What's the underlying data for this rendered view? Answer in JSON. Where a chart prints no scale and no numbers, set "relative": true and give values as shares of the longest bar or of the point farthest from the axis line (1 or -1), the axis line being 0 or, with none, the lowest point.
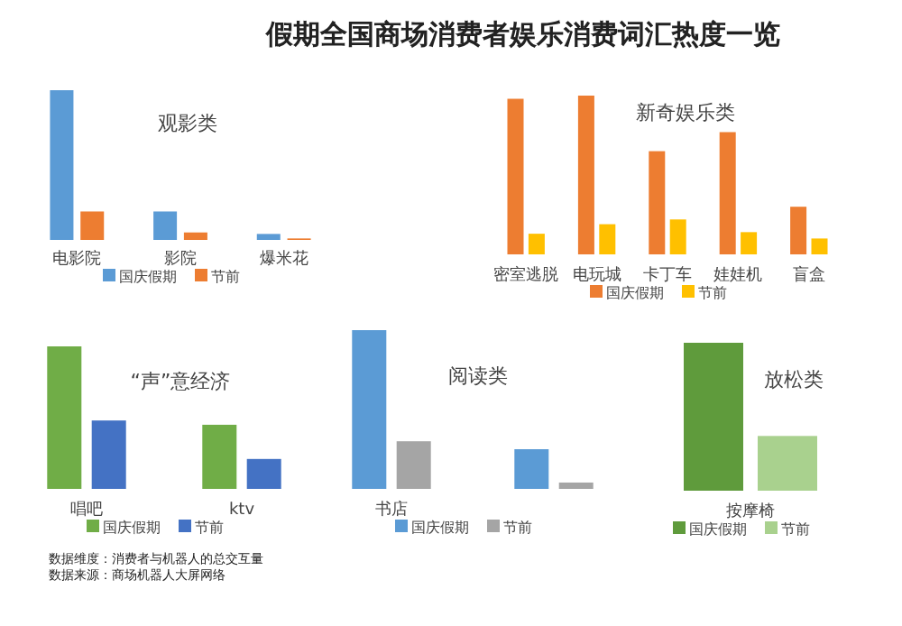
{
  "chart_data": [
    {
      "type": "other",
      "title": "假期全国商场消费者娱乐消费词汇热度一览",
      "annotations": [
        "数据维度：消费者与机器人的总交互量",
        "数据来源：商场机器人大屏网络"
      ]
    },
    {
      "type": "bar",
      "title": "观影类",
      "relative": true,
      "legend": "bottom",
      "categories": [
        "电影院",
        "影院",
        "爆米花"
      ],
      "series": [
        {
          "name": "国庆假期",
          "color": "#5b9bd5",
          "values": [
            1,
            0.19,
            0.04
          ]
        },
        {
          "name": "节前",
          "color": "#ed7d31",
          "values": [
            0.19,
            0.05,
            0.01
          ]
        }
      ]
    },
    {
      "type": "bar",
      "title": "新奇娱乐类",
      "relative": true,
      "legend": "bottom",
      "categories": [
        "密室逃脱",
        "电玩城",
        "卡丁车",
        "娃娃机",
        "盲盒"
      ],
      "series": [
        {
          "name": "国庆假期",
          "color": "#ed7d31",
          "values": [
            0.98,
            1,
            0.65,
            0.77,
            0.3
          ]
        },
        {
          "name": "节前",
          "color": "#ffc000",
          "values": [
            0.13,
            0.19,
            0.22,
            0.14,
            0.1
          ]
        }
      ]
    },
    {
      "type": "bar",
      "title": "“声”意经济",
      "relative": true,
      "legend": "bottom",
      "categories": [
        "唱吧",
        "ktv"
      ],
      "series": [
        {
          "name": "国庆假期",
          "color": "#70ad47",
          "values": [
            1,
            0.45
          ]
        },
        {
          "name": "节前",
          "color": "#4472c4",
          "values": [
            0.48,
            0.21
          ]
        }
      ]
    },
    {
      "type": "bar",
      "title": "阅读类",
      "relative": true,
      "legend": "bottom",
      "categories": [
        "书店",
        null
      ],
      "series": [
        {
          "name": "国庆假期",
          "color": "#5b9bd5",
          "values": [
            1,
            0.25
          ]
        },
        {
          "name": "节前",
          "color": "#a5a5a5",
          "values": [
            0.3,
            0.04
          ]
        }
      ]
    },
    {
      "type": "bar",
      "title": "放松类",
      "relative": true,
      "legend": "bottom",
      "categories": [
        "按摩椅"
      ],
      "series": [
        {
          "name": "国庆假期",
          "color": "#5f9b3c",
          "values": [
            1
          ]
        },
        {
          "name": "节前",
          "color": "#a9d18e",
          "values": [
            0.37
          ]
        }
      ]
    }
  ]
}
